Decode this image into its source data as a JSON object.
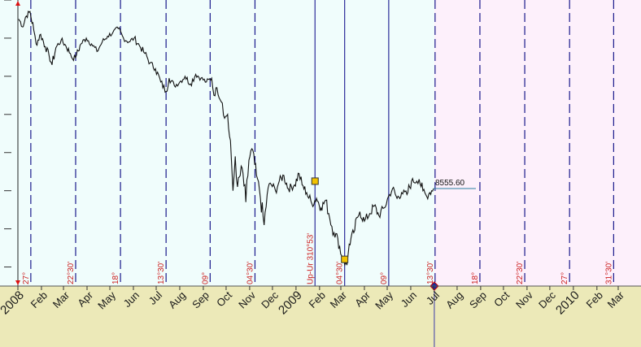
{
  "colors": {
    "history_bg": "#f0fdfc",
    "future_bg": "#fdf0fb",
    "axis_bg": "#ece9b8",
    "vline_dashed": "#1a1a8c",
    "vline_solid": "#2b2b99",
    "vline_today": "#3a3aa8",
    "price": "#111111",
    "red_text": "#cc1f1f",
    "month_text": "#1a1a1a",
    "last_price_line": "#2a7fa0",
    "marker_fill": "#f2c200"
  },
  "chart_data": {
    "type": "line",
    "xlabel": "",
    "ylabel": "",
    "xlim": [
      "2008-01-01",
      "2010-03-31"
    ],
    "ylim": [
      6000,
      13500
    ],
    "last_price_label": "8555.60",
    "months": [
      {
        "label": "2008",
        "date": "2008-01-01"
      },
      {
        "label": "Feb",
        "date": "2008-02-01"
      },
      {
        "label": "Mar",
        "date": "2008-03-01"
      },
      {
        "label": "Apr",
        "date": "2008-04-01"
      },
      {
        "label": "May",
        "date": "2008-05-01"
      },
      {
        "label": "Jun",
        "date": "2008-06-01"
      },
      {
        "label": "Jul",
        "date": "2008-07-01"
      },
      {
        "label": "Aug",
        "date": "2008-08-01"
      },
      {
        "label": "Sep",
        "date": "2008-09-01"
      },
      {
        "label": "Oct",
        "date": "2008-10-01"
      },
      {
        "label": "Nov",
        "date": "2008-11-01"
      },
      {
        "label": "Dec",
        "date": "2008-12-01"
      },
      {
        "label": "2009",
        "date": "2009-01-01"
      },
      {
        "label": "Feb",
        "date": "2009-02-01"
      },
      {
        "label": "Mar",
        "date": "2009-03-01"
      },
      {
        "label": "Apr",
        "date": "2009-04-01"
      },
      {
        "label": "May",
        "date": "2009-05-01"
      },
      {
        "label": "Jun",
        "date": "2009-06-01"
      },
      {
        "label": "Jul",
        "date": "2009-07-01"
      },
      {
        "label": "Aug",
        "date": "2009-08-01"
      },
      {
        "label": "Sep",
        "date": "2009-09-01"
      },
      {
        "label": "Oct",
        "date": "2009-10-01"
      },
      {
        "label": "Nov",
        "date": "2009-11-01"
      },
      {
        "label": "Dec",
        "date": "2009-12-01"
      },
      {
        "label": "2010",
        "date": "2010-01-01"
      },
      {
        "label": "Feb",
        "date": "2010-02-01"
      },
      {
        "label": "Mar",
        "date": "2010-03-01"
      }
    ],
    "vertical_lines": [
      {
        "date": "2008-01-18",
        "style": "dashed",
        "label": "27°"
      },
      {
        "date": "2008-03-17",
        "style": "dashed",
        "label": "22°30'"
      },
      {
        "date": "2008-05-15",
        "style": "dashed",
        "label": "18°"
      },
      {
        "date": "2008-07-14",
        "style": "dashed",
        "label": "13°30'"
      },
      {
        "date": "2008-09-10",
        "style": "dashed",
        "label": "09°"
      },
      {
        "date": "2008-11-08",
        "style": "dashed",
        "label": "04°30'"
      },
      {
        "date": "2009-01-26",
        "style": "solid",
        "label": "Up-Ur 310°53'"
      },
      {
        "date": "2009-03-06",
        "style": "solid",
        "label": "04°30'"
      },
      {
        "date": "2009-05-03",
        "style": "solid",
        "label": "09°"
      },
      {
        "date": "2009-07-03",
        "style": "dashed",
        "label": "13°30'"
      },
      {
        "date": "2009-08-31",
        "style": "dashed",
        "label": "18°"
      },
      {
        "date": "2009-10-29",
        "style": "dashed",
        "label": "22°30'"
      },
      {
        "date": "2009-12-27",
        "style": "dashed",
        "label": "27°"
      },
      {
        "date": "2010-02-23",
        "style": "dashed",
        "label": "31°30'"
      }
    ],
    "today_date": "2009-07-02",
    "future_start": "2009-07-02",
    "series": [
      {
        "values": [
          [
            "2008-01-02",
            13000
          ],
          [
            "2008-01-08",
            12800
          ],
          [
            "2008-01-11",
            13050
          ],
          [
            "2008-01-17",
            13200
          ],
          [
            "2008-01-22",
            12700
          ],
          [
            "2008-01-25",
            12350
          ],
          [
            "2008-01-31",
            12600
          ],
          [
            "2008-02-06",
            12280
          ],
          [
            "2008-02-11",
            12050
          ],
          [
            "2008-02-15",
            11800
          ],
          [
            "2008-02-20",
            12250
          ],
          [
            "2008-02-27",
            12450
          ],
          [
            "2008-03-04",
            12300
          ],
          [
            "2008-03-10",
            12100
          ],
          [
            "2008-03-13",
            11950
          ],
          [
            "2008-03-18",
            12050
          ],
          [
            "2008-03-24",
            12350
          ],
          [
            "2008-03-31",
            12500
          ],
          [
            "2008-04-07",
            12350
          ],
          [
            "2008-04-14",
            12150
          ],
          [
            "2008-04-21",
            12400
          ],
          [
            "2008-04-28",
            12550
          ],
          [
            "2008-05-05",
            12650
          ],
          [
            "2008-05-12",
            12750
          ],
          [
            "2008-05-19",
            12500
          ],
          [
            "2008-05-26",
            12400
          ],
          [
            "2008-06-02",
            12500
          ],
          [
            "2008-06-09",
            12300
          ],
          [
            "2008-06-16",
            12100
          ],
          [
            "2008-06-23",
            11850
          ],
          [
            "2008-06-30",
            11700
          ],
          [
            "2008-07-07",
            11350
          ],
          [
            "2008-07-14",
            11100
          ],
          [
            "2008-07-18",
            11450
          ],
          [
            "2008-07-25",
            11250
          ],
          [
            "2008-08-01",
            11350
          ],
          [
            "2008-08-08",
            11500
          ],
          [
            "2008-08-15",
            11300
          ],
          [
            "2008-08-22",
            11550
          ],
          [
            "2008-08-29",
            11450
          ],
          [
            "2008-09-05",
            11350
          ],
          [
            "2008-09-12",
            11450
          ],
          [
            "2008-09-15",
            11000
          ],
          [
            "2008-09-19",
            11200
          ],
          [
            "2008-09-26",
            10800
          ],
          [
            "2008-09-29",
            10400
          ],
          [
            "2008-10-03",
            10500
          ],
          [
            "2008-10-08",
            9300
          ],
          [
            "2008-10-10",
            8500
          ],
          [
            "2008-10-13",
            9400
          ],
          [
            "2008-10-16",
            8600
          ],
          [
            "2008-10-22",
            9100
          ],
          [
            "2008-10-27",
            8200
          ],
          [
            "2008-10-31",
            9300
          ],
          [
            "2008-11-04",
            9600
          ],
          [
            "2008-11-10",
            8900
          ],
          [
            "2008-11-14",
            8500
          ],
          [
            "2008-11-20",
            7600
          ],
          [
            "2008-11-24",
            8400
          ],
          [
            "2008-11-28",
            8700
          ],
          [
            "2008-12-05",
            8500
          ],
          [
            "2008-12-10",
            8750
          ],
          [
            "2008-12-16",
            8900
          ],
          [
            "2008-12-22",
            8550
          ],
          [
            "2008-12-30",
            8650
          ],
          [
            "2009-01-05",
            8950
          ],
          [
            "2009-01-09",
            8650
          ],
          [
            "2009-01-15",
            8450
          ],
          [
            "2009-01-22",
            8150
          ],
          [
            "2009-01-28",
            8300
          ],
          [
            "2009-02-03",
            8050
          ],
          [
            "2009-02-09",
            8250
          ],
          [
            "2009-02-13",
            7900
          ],
          [
            "2009-02-20",
            7400
          ],
          [
            "2009-02-25",
            7250
          ],
          [
            "2009-03-02",
            6800
          ],
          [
            "2009-03-05",
            6650
          ],
          [
            "2009-03-09",
            6550
          ],
          [
            "2009-03-12",
            7100
          ],
          [
            "2009-03-18",
            7400
          ],
          [
            "2009-03-23",
            7800
          ],
          [
            "2009-03-26",
            7950
          ],
          [
            "2009-04-01",
            7700
          ],
          [
            "2009-04-08",
            7900
          ],
          [
            "2009-04-14",
            8100
          ],
          [
            "2009-04-20",
            7850
          ],
          [
            "2009-04-27",
            8050
          ],
          [
            "2009-05-04",
            8400
          ],
          [
            "2009-05-08",
            8550
          ],
          [
            "2009-05-14",
            8300
          ],
          [
            "2009-05-20",
            8450
          ],
          [
            "2009-05-27",
            8400
          ],
          [
            "2009-06-02",
            8750
          ],
          [
            "2009-06-09",
            8750
          ],
          [
            "2009-06-12",
            8800
          ],
          [
            "2009-06-17",
            8500
          ],
          [
            "2009-06-22",
            8350
          ],
          [
            "2009-06-26",
            8450
          ],
          [
            "2009-07-01",
            8555.6
          ]
        ]
      }
    ],
    "markers": [
      {
        "date": "2009-01-26",
        "value": 8750,
        "shape": "square"
      },
      {
        "date": "2009-03-06",
        "value": 6700,
        "shape": "square"
      }
    ]
  }
}
